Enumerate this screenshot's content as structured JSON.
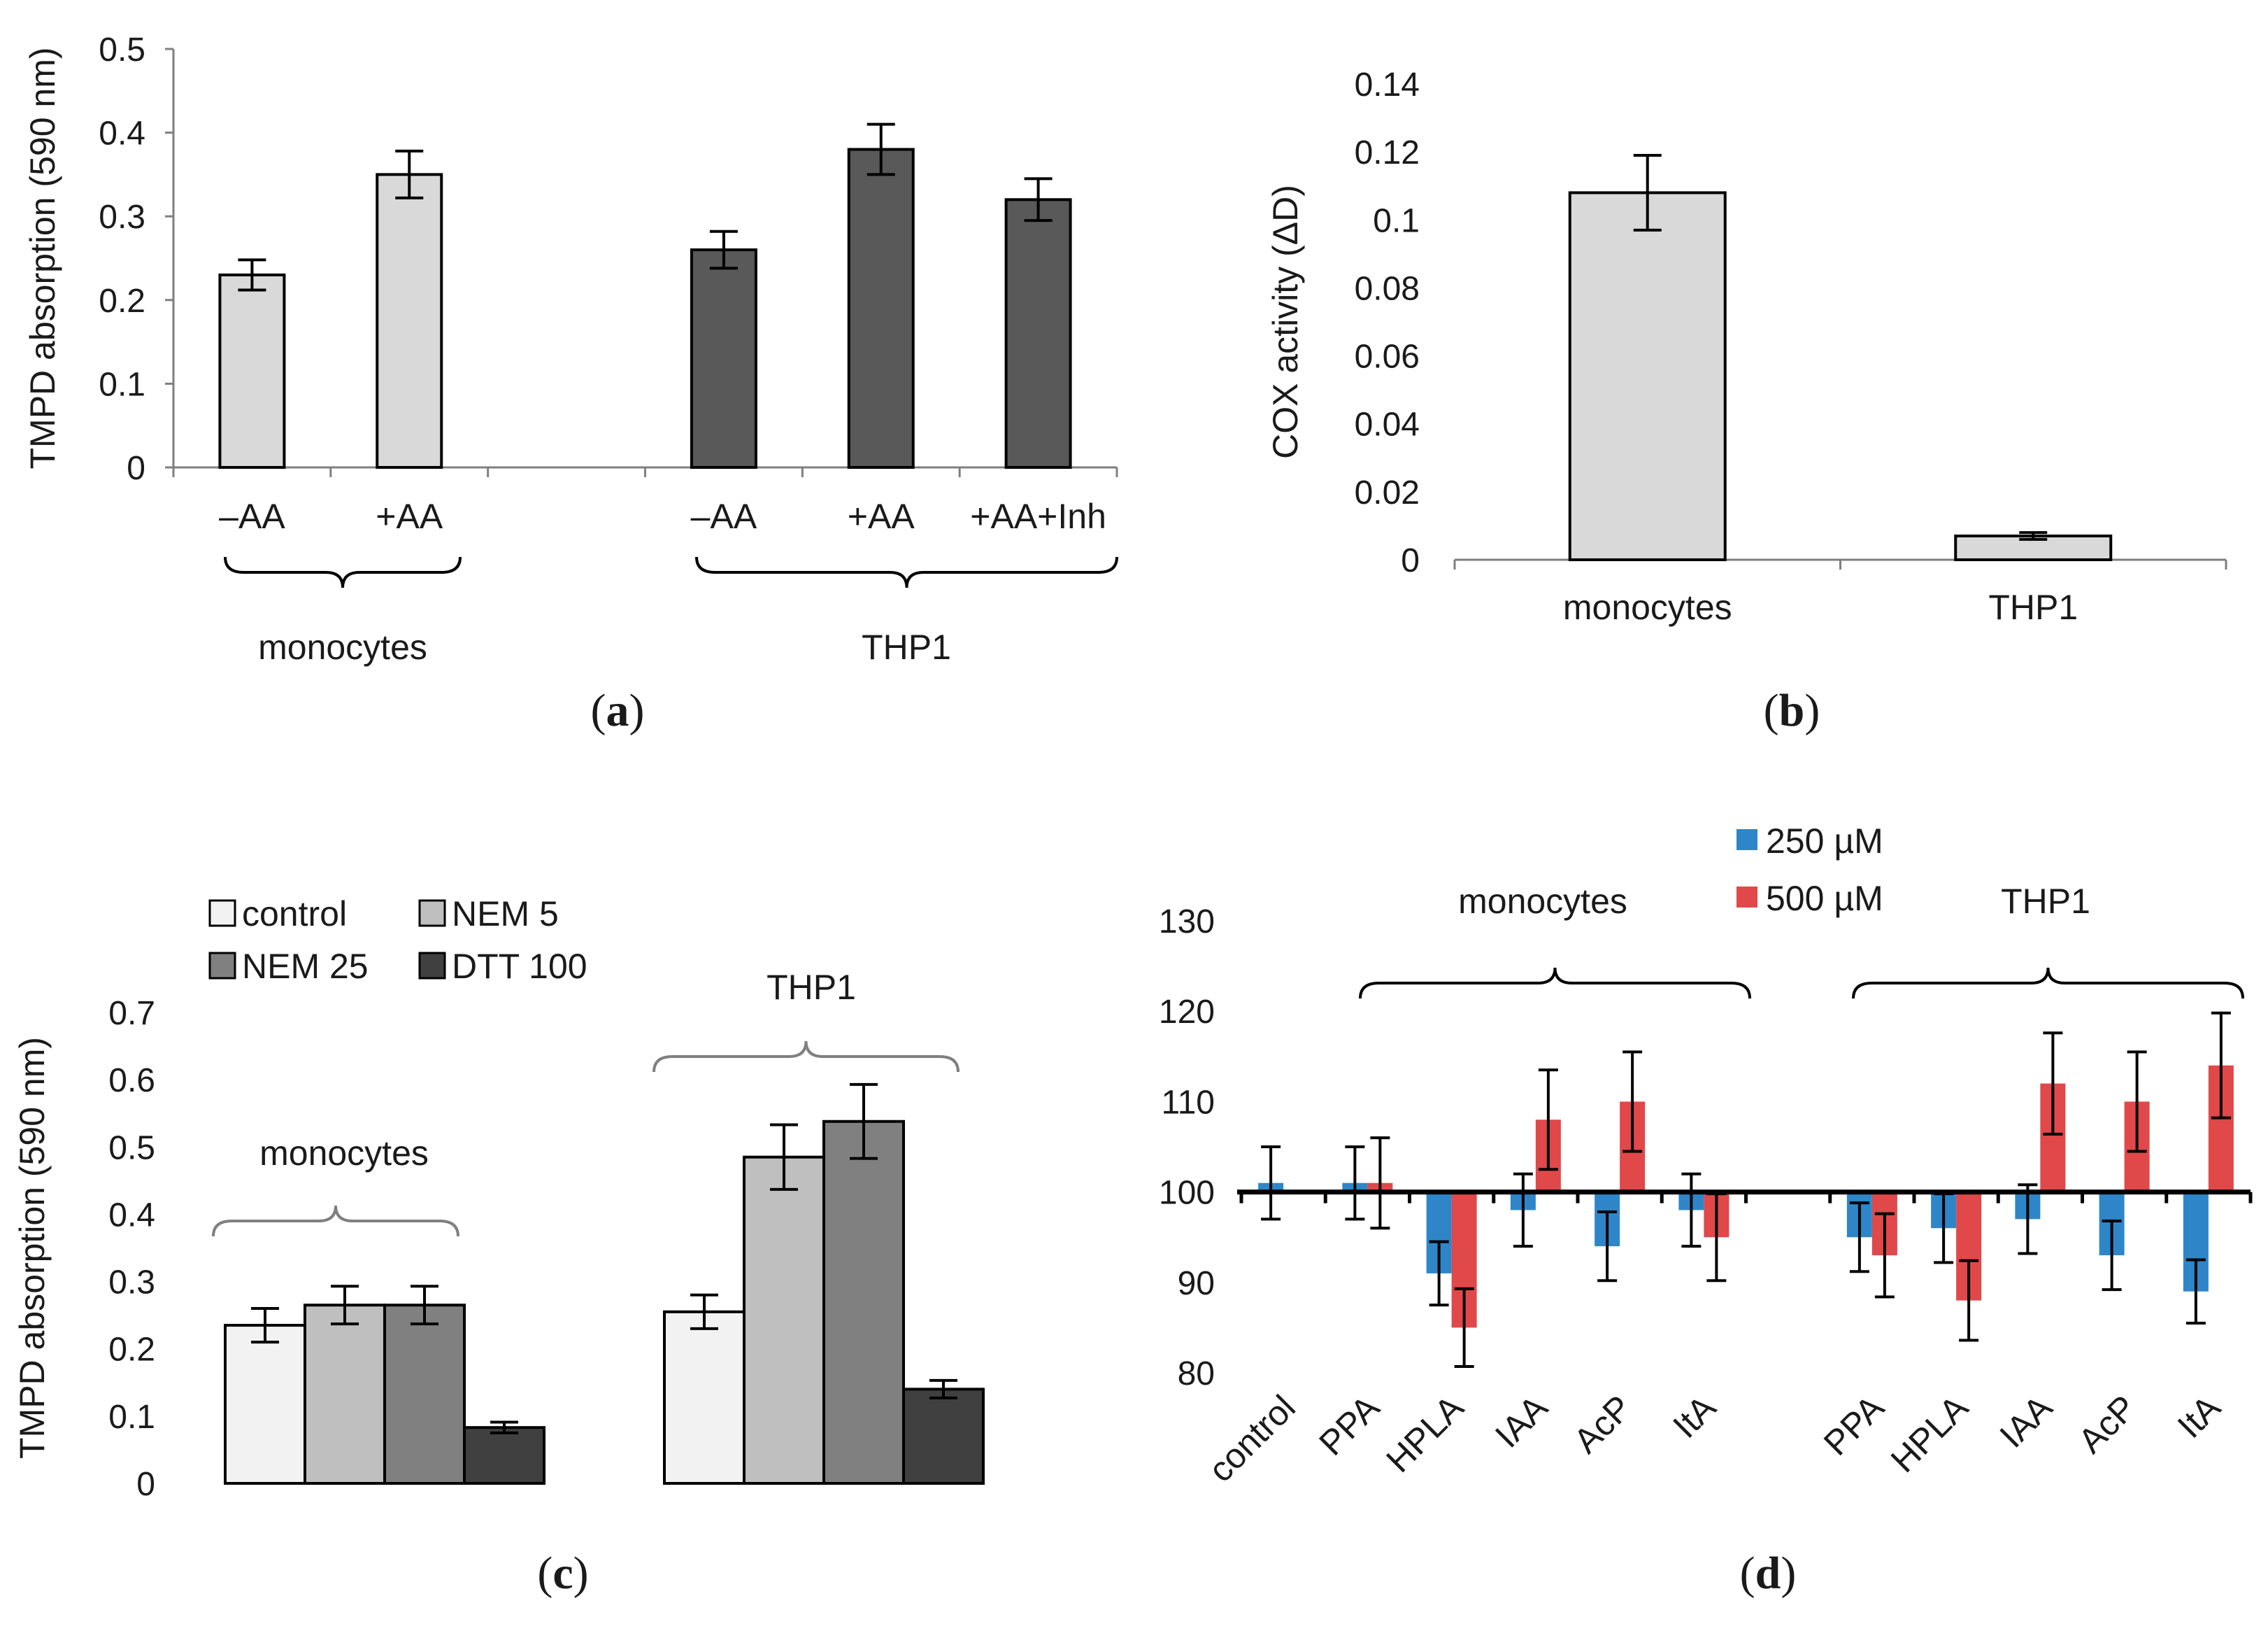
{
  "chart_data": [
    {
      "panel": "a",
      "type": "bar",
      "ylabel": "TMPD absorption (590 nm)",
      "ylim": [
        0,
        0.5
      ],
      "yticks": [
        "0",
        "0.1",
        "0.2",
        "0.3",
        "0.4",
        "0.5"
      ],
      "categories": [
        "–AA",
        "+AA",
        "",
        "–AA",
        "+AA",
        "+AA+Inh"
      ],
      "values": [
        0.23,
        0.35,
        null,
        0.26,
        0.38,
        0.32
      ],
      "errors": [
        0.018,
        0.028,
        null,
        0.022,
        0.03,
        0.025
      ],
      "bar_colors": [
        "#d9d9d9",
        "#d9d9d9",
        null,
        "#595959",
        "#595959",
        "#595959"
      ],
      "groups": [
        "monocytes",
        "THP1"
      ],
      "panel_label": [
        "(",
        "a",
        ")"
      ]
    },
    {
      "panel": "b",
      "type": "bar",
      "ylabel": "COX activity (ΔD)",
      "ylim": [
        0,
        0.14
      ],
      "yticks": [
        "0",
        "0.02",
        "0.04",
        "0.06",
        "0.08",
        "0.1",
        "0.12",
        "0.14"
      ],
      "categories": [
        "monocytes",
        "THP1"
      ],
      "values": [
        0.108,
        0.007
      ],
      "errors": [
        0.011,
        0.001
      ],
      "bar_color": "#d9d9d9",
      "panel_label": [
        "(",
        "b",
        ")"
      ]
    },
    {
      "panel": "c",
      "type": "bar",
      "ylabel": "TMPD absorption (590 nm)",
      "ylim": [
        0,
        0.7
      ],
      "yticks": [
        "0",
        "0.1",
        "0.2",
        "0.3",
        "0.4",
        "0.5",
        "0.6",
        "0.7"
      ],
      "groups": [
        "monocytes",
        "THP1"
      ],
      "series": [
        {
          "name": "control",
          "color": "#f2f2f2",
          "values": [
            0.235,
            0.255
          ],
          "errors": [
            0.025,
            0.025
          ]
        },
        {
          "name": "NEM 5",
          "color": "#bfbfbf",
          "values": [
            0.265,
            0.485
          ],
          "errors": [
            0.028,
            0.048
          ]
        },
        {
          "name": "NEM 25",
          "color": "#808080",
          "values": [
            0.265,
            0.538
          ],
          "errors": [
            0.028,
            0.055
          ]
        },
        {
          "name": "DTT 100",
          "color": "#404040",
          "values": [
            0.083,
            0.14
          ],
          "errors": [
            0.008,
            0.013
          ]
        }
      ],
      "panel_label": [
        "(",
        "c",
        ")"
      ]
    },
    {
      "panel": "d",
      "type": "bar",
      "ylabel": "",
      "ylim": [
        80,
        130
      ],
      "baseline": 100,
      "yticks": [
        "80",
        "90",
        "100",
        "110",
        "120",
        "130"
      ],
      "categories": [
        "control",
        "PPA",
        "HPLA",
        "IAA",
        "AcP",
        "ItA",
        "",
        "PPA",
        "HPLA",
        "IAA",
        "AcP",
        "ItA"
      ],
      "groups": [
        "monocytes",
        "THP1"
      ],
      "series": [
        {
          "name": "250 µM",
          "color": "#2e86c8",
          "values": [
            101,
            101,
            91,
            98,
            94,
            98,
            null,
            95,
            96,
            97,
            93,
            89
          ],
          "errors": [
            4,
            4,
            3.5,
            4,
            3.8,
            4,
            null,
            3.8,
            3.8,
            3.8,
            3.8,
            3.5
          ]
        },
        {
          "name": "500 µM",
          "color": "#e0484a",
          "values": [
            null,
            101,
            85,
            108,
            110,
            95,
            null,
            93,
            88,
            112,
            110,
            114
          ],
          "errors": [
            null,
            5,
            4.3,
            5.5,
            5.5,
            4.8,
            null,
            4.6,
            4.4,
            5.6,
            5.5,
            5.8
          ]
        }
      ],
      "panel_label": [
        "(",
        "d",
        ")"
      ]
    }
  ]
}
